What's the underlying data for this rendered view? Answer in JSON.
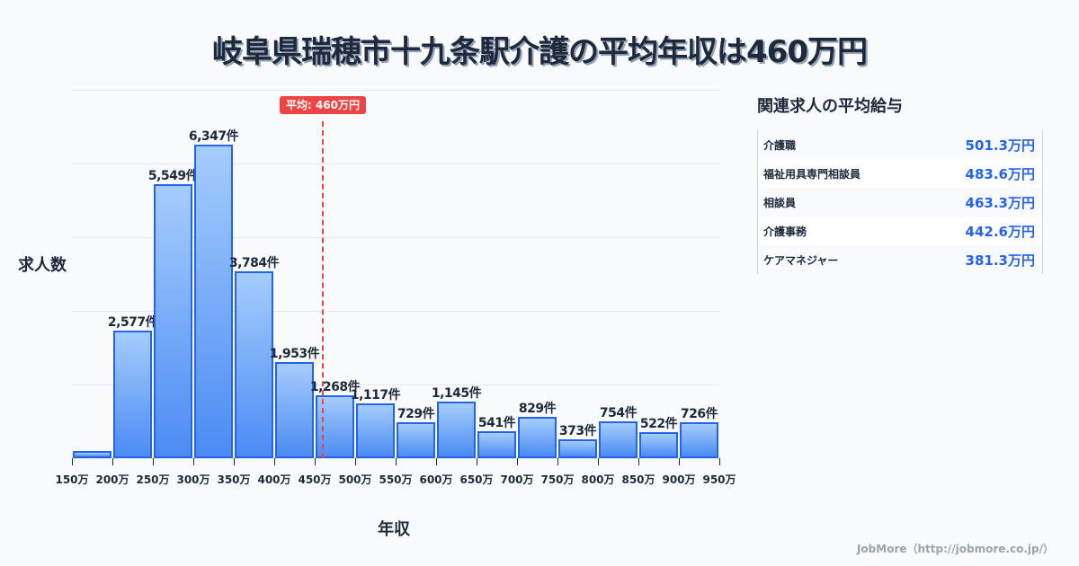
{
  "title": "岐阜県瑞穂市十九条駅介護の平均年収は460万円",
  "chart_data": {
    "type": "bar",
    "title": "岐阜県瑞穂市十九条駅介護の平均年収は460万円",
    "xlabel": "年収",
    "ylabel": "求人数",
    "categories": [
      "150-200万",
      "200-250万",
      "250-300万",
      "300-350万",
      "350-400万",
      "400-450万",
      "450-500万",
      "500-550万",
      "550-600万",
      "600-650万",
      "650-700万",
      "700-750万",
      "750-800万",
      "800-850万",
      "850-900万",
      "900-950万"
    ],
    "x_ticks": [
      "150万",
      "200万",
      "250万",
      "300万",
      "350万",
      "400万",
      "450万",
      "500万",
      "550万",
      "600万",
      "650万",
      "700万",
      "750万",
      "800万",
      "850万",
      "900万",
      "950万"
    ],
    "values": [
      140,
      2577,
      5549,
      6347,
      3784,
      1953,
      1268,
      1117,
      729,
      1145,
      541,
      829,
      373,
      754,
      522,
      726
    ],
    "labels": [
      "",
      "2,577件",
      "5,549件",
      "6,347件",
      "3,784件",
      "1,953件",
      "1,268件",
      "1,117件",
      "729件",
      "1,145件",
      "541件",
      "829件",
      "373件",
      "754件",
      "522件",
      "726件"
    ],
    "ylim": [
      0,
      7500
    ],
    "grid": true,
    "average_marker": {
      "value": 460,
      "label": "平均: 460万円"
    }
  },
  "axes": {
    "ylabel": "求人数",
    "xlabel": "年収"
  },
  "average": {
    "label": "平均: 460万円",
    "color": "#ef4444"
  },
  "related": {
    "title": "関連求人の平均給与",
    "items": [
      {
        "name": "介護職",
        "value": "501.3万円"
      },
      {
        "name": "福祉用具専門相談員",
        "value": "483.6万円"
      },
      {
        "name": "相談員",
        "value": "463.3万円"
      },
      {
        "name": "介護事務",
        "value": "442.6万円"
      },
      {
        "name": "ケアマネジャー",
        "value": "381.3万円"
      }
    ]
  },
  "footer": "JobMore（http://jobmore.co.jp/）",
  "colors": {
    "bar_border": "#2563eb",
    "bar_top": "#a5cdfc",
    "bar_bottom": "#4b8bf4",
    "accent_value": "#2563eb",
    "text": "#1e293b"
  }
}
